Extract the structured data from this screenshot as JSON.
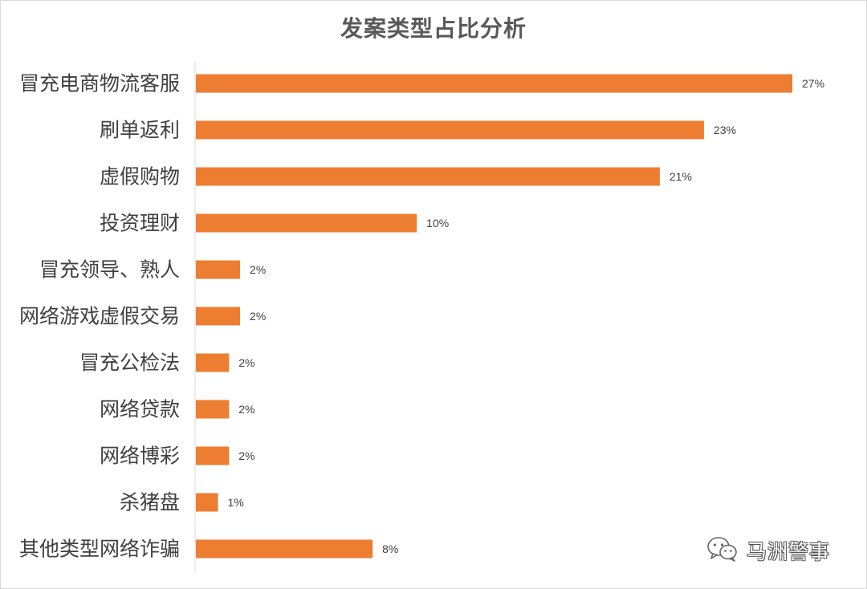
{
  "chart_data": {
    "type": "bar",
    "orientation": "horizontal",
    "title": "发案类型占比分析",
    "categories": [
      "冒充电商物流客服",
      "刷单返利",
      "虚假购物",
      "投资理财",
      "冒充领导、熟人",
      "网络游戏虚假交易",
      "冒充公检法",
      "网络贷款",
      "网络博彩",
      "杀猪盘",
      "其他类型网络诈骗"
    ],
    "values": [
      27,
      23,
      21,
      10,
      2,
      2,
      1.5,
      1.5,
      1.5,
      1,
      8
    ],
    "data_labels": [
      "27%",
      "23%",
      "21%",
      "10%",
      "2%",
      "2%",
      "2%",
      "2%",
      "2%",
      "1%",
      "8%"
    ],
    "xlim": [
      0,
      27
    ],
    "grid": false,
    "color": "#ED7D31"
  },
  "watermark": {
    "text": "马洲警事",
    "icon": "wechat-icon"
  }
}
